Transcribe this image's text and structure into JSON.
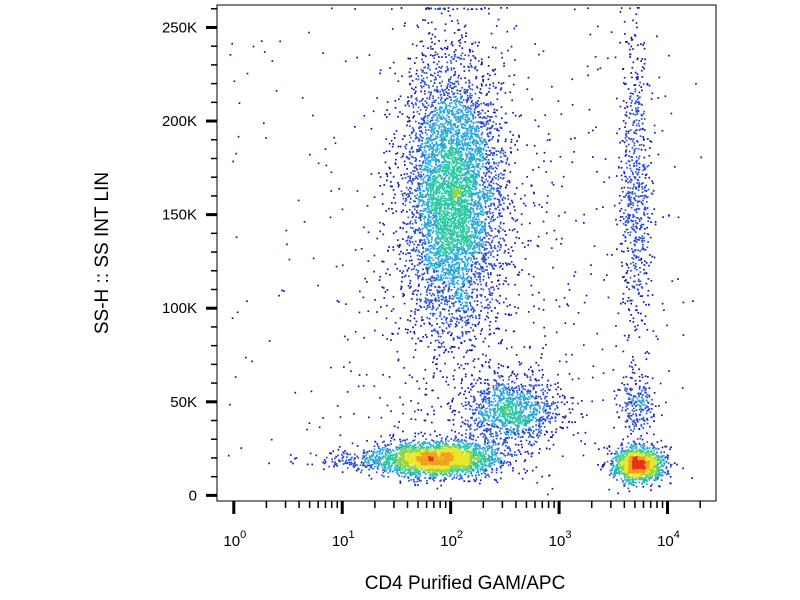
{
  "chart_data": {
    "type": "scatter",
    "title": "",
    "xlabel": "CD4 Purified GAM/APC",
    "ylabel": "SS-H :: SS INT LIN",
    "x_scale": "log",
    "xlim": [
      0.7,
      28000
    ],
    "ylim": [
      -3000,
      262000
    ],
    "grid": false,
    "x_ticks": [
      {
        "value": 1,
        "base": "10",
        "exp": "0"
      },
      {
        "value": 10,
        "base": "10",
        "exp": "1"
      },
      {
        "value": 100,
        "base": "10",
        "exp": "2"
      },
      {
        "value": 1000,
        "base": "10",
        "exp": "3"
      },
      {
        "value": 10000,
        "base": "10",
        "exp": "4"
      }
    ],
    "y_ticks": [
      {
        "value": 0,
        "label": "0"
      },
      {
        "value": 50000,
        "label": "50K"
      },
      {
        "value": 100000,
        "label": "100K"
      },
      {
        "value": 150000,
        "label": "150K"
      },
      {
        "value": 200000,
        "label": "200K"
      },
      {
        "value": 250000,
        "label": "250K"
      }
    ],
    "density_colors": [
      "#1515a8",
      "#2a4cd0",
      "#2aa6d8",
      "#2dc9a4",
      "#8ed647",
      "#e8e82a",
      "#f2a11c",
      "#e63417"
    ],
    "populations": [
      {
        "center": [
          105,
          160000
        ],
        "spread": [
          0.22,
          36000
        ],
        "count": 5200
      },
      {
        "center": [
          75,
          20000
        ],
        "spread": [
          0.28,
          4800
        ],
        "count": 2600
      },
      {
        "center": [
          370,
          46000
        ],
        "spread": [
          0.22,
          9500
        ],
        "count": 1200
      },
      {
        "center": [
          5200,
          17000
        ],
        "spread": [
          0.12,
          4800
        ],
        "count": 1400
      },
      {
        "center": [
          4900,
          160000
        ],
        "spread": [
          0.08,
          42000
        ],
        "count": 650
      },
      {
        "center": [
          5000,
          48000
        ],
        "spread": [
          0.09,
          8000
        ],
        "count": 220
      },
      {
        "center": [
          220,
          110000
        ],
        "spread": [
          0.6,
          70000
        ],
        "count": 450
      },
      {
        "center": [
          60,
          150000
        ],
        "spread": [
          0.35,
          60000
        ],
        "count": 300
      },
      {
        "center": [
          18,
          19000
        ],
        "spread": [
          0.3,
          2500
        ],
        "count": 220
      }
    ]
  }
}
